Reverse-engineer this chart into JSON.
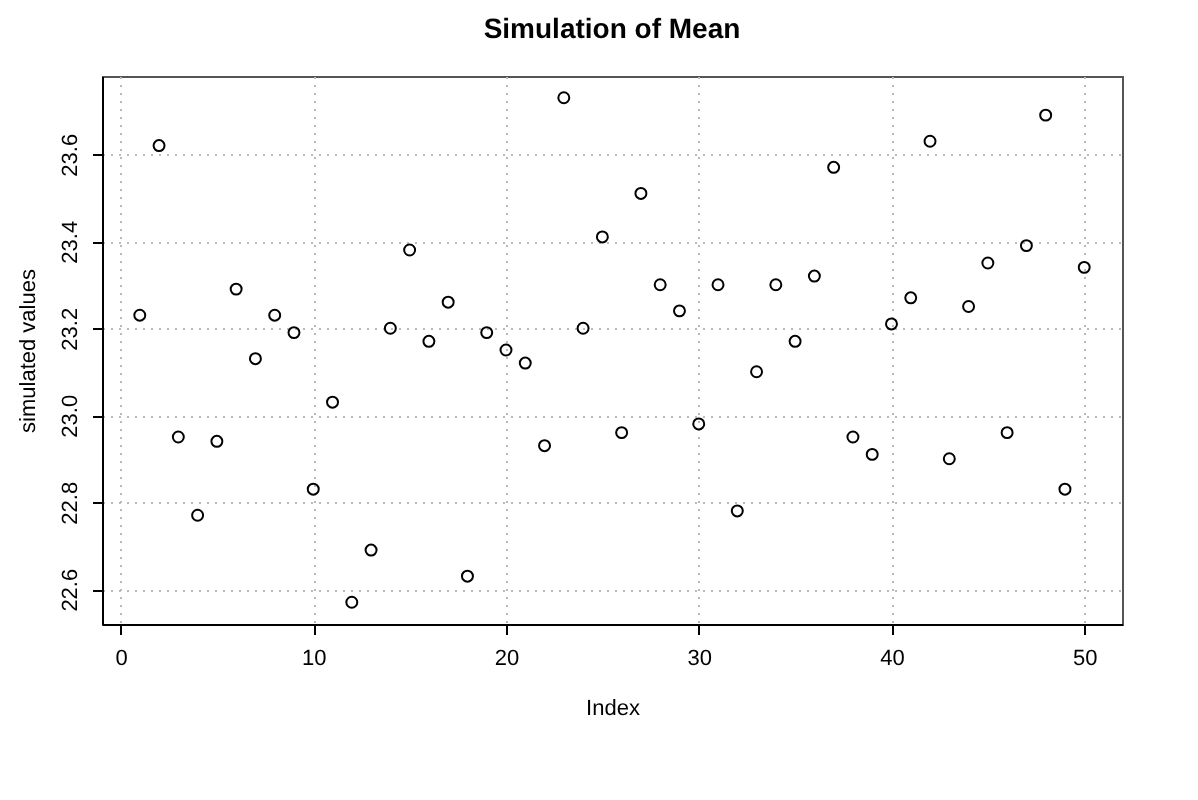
{
  "chart_data": {
    "type": "scatter",
    "title": "Simulation of Mean",
    "xlabel": "Index",
    "ylabel": "simulated values",
    "x": [
      1,
      2,
      3,
      4,
      5,
      6,
      7,
      8,
      9,
      10,
      11,
      12,
      13,
      14,
      15,
      16,
      17,
      18,
      19,
      20,
      21,
      22,
      23,
      24,
      25,
      26,
      27,
      28,
      29,
      30,
      31,
      32,
      33,
      34,
      35,
      36,
      37,
      38,
      39,
      40,
      41,
      42,
      43,
      44,
      45,
      46,
      47,
      48,
      49,
      50
    ],
    "values": [
      23.23,
      23.62,
      22.95,
      22.77,
      22.94,
      23.29,
      23.13,
      23.23,
      23.19,
      22.83,
      23.03,
      22.57,
      22.69,
      23.2,
      23.38,
      23.17,
      23.26,
      22.63,
      23.19,
      23.15,
      23.12,
      22.93,
      23.73,
      23.2,
      23.41,
      22.96,
      23.51,
      23.3,
      23.24,
      22.98,
      23.3,
      22.78,
      23.1,
      23.3,
      23.17,
      23.32,
      23.57,
      22.95,
      22.91,
      23.21,
      23.27,
      23.63,
      22.9,
      23.25,
      23.35,
      22.96,
      23.39,
      23.69,
      22.83,
      23.34
    ],
    "color": "#000000",
    "marker": "circle",
    "grid": true,
    "xlim": [
      -0.96,
      51.96
    ],
    "xticks": [
      0,
      10,
      20,
      30,
      40,
      50
    ],
    "ylim": [
      22.52,
      23.78
    ],
    "yticks": [
      {
        "value": 22.6,
        "label": "22.6"
      },
      {
        "value": 22.8,
        "label": "22.8"
      },
      {
        "value": 23,
        "label": "23.0"
      },
      {
        "value": 23.2,
        "label": "23.2"
      },
      {
        "value": 23.4,
        "label": "23.4"
      },
      {
        "value": 23.6,
        "label": "23.6"
      }
    ]
  }
}
